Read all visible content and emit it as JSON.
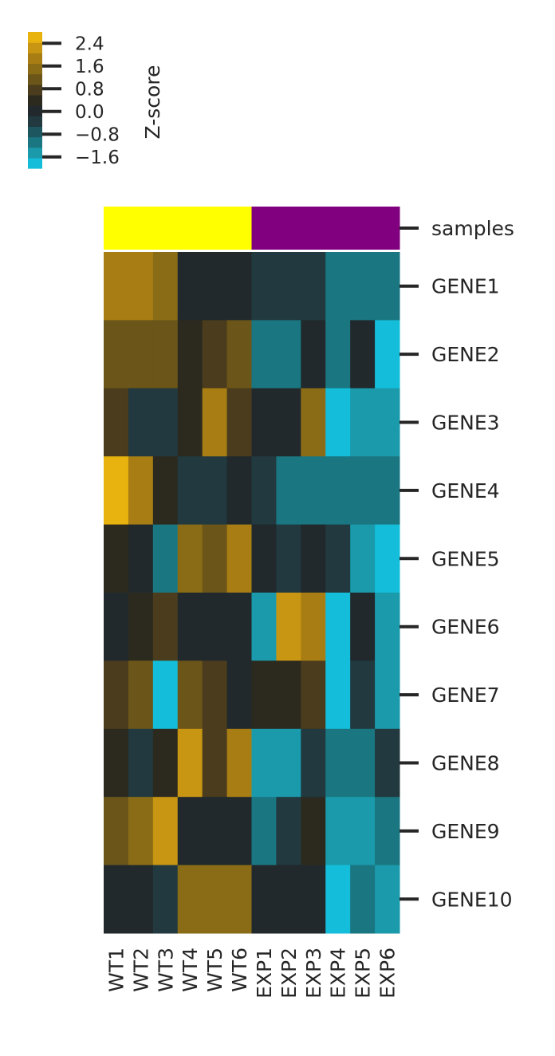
{
  "chart_data": {
    "type": "heatmap",
    "title": "",
    "samples": [
      "WT1",
      "WT2",
      "WT3",
      "WT4",
      "WT5",
      "WT6",
      "EXP1",
      "EXP2",
      "EXP3",
      "EXP4",
      "EXP5",
      "EXP6"
    ],
    "genes": [
      "GENE1",
      "GENE2",
      "GENE3",
      "GENE4",
      "GENE5",
      "GENE6",
      "GENE7",
      "GENE8",
      "GENE9",
      "GENE10"
    ],
    "annotation": {
      "label": "samples",
      "groups": [
        {
          "name": "WT",
          "color": "#ffff00",
          "members": [
            "WT1",
            "WT2",
            "WT3",
            "WT4",
            "WT5",
            "WT6"
          ]
        },
        {
          "name": "EXP",
          "color": "#800080",
          "members": [
            "EXP1",
            "EXP2",
            "EXP3",
            "EXP4",
            "EXP5",
            "EXP6"
          ]
        }
      ]
    },
    "values": [
      [
        1.9,
        1.9,
        1.6,
        -0.1,
        0.1,
        -0.1,
        -0.5,
        -0.5,
        -0.5,
        -1.2,
        -1.2,
        -1.2
      ],
      [
        1.2,
        1.2,
        1.2,
        0.4,
        0.9,
        1.2,
        -0.9,
        -0.9,
        -0.1,
        -1.1,
        -0.1,
        -2.3
      ],
      [
        0.9,
        -0.4,
        -0.4,
        0.4,
        2.0,
        0.7,
        -0.1,
        -0.1,
        1.5,
        -2.3,
        -1.3,
        -1.3
      ],
      [
        2.6,
        2.0,
        0.4,
        -0.5,
        -0.5,
        -0.1,
        -0.5,
        -0.9,
        -0.9,
        -0.9,
        -0.9,
        -0.9
      ],
      [
        0.4,
        0.1,
        -0.9,
        1.5,
        1.2,
        2.0,
        -0.1,
        -0.5,
        -0.1,
        -0.4,
        -1.6,
        -2.1
      ],
      [
        0.1,
        0.4,
        0.8,
        -0.1,
        0.1,
        0.1,
        -1.3,
        2.1,
        1.8,
        -2.4,
        -0.1,
        -1.6
      ],
      [
        0.9,
        1.2,
        -1.7,
        1.2,
        0.9,
        0.1,
        0.4,
        0.4,
        0.8,
        -2.4,
        -0.4,
        -1.6
      ],
      [
        0.4,
        -0.4,
        0.4,
        2.4,
        0.8,
        2.0,
        -1.3,
        -1.3,
        -0.4,
        -1.2,
        -1.2,
        -0.4
      ],
      [
        1.2,
        1.6,
        2.4,
        0.1,
        0.1,
        0.1,
        -0.9,
        -0.4,
        0.4,
        -1.6,
        -1.6,
        -1.1
      ],
      [
        -0.1,
        0.1,
        -0.4,
        1.6,
        1.6,
        1.6,
        0.1,
        0.1,
        0.1,
        -2.0,
        -1.2,
        -1.6
      ]
    ],
    "colorbar": {
      "label": "Z-score",
      "vmin": -2.0,
      "vmax": 2.8,
      "ticks": [
        2.4,
        1.6,
        0.8,
        0.0,
        -0.8,
        -1.6
      ],
      "tick_labels": [
        "2.4",
        "1.6",
        "0.8",
        "0.0",
        "−0.8",
        "−1.6"
      ],
      "colors": [
        "#14bdd9",
        "#1a9aab",
        "#1a7680",
        "#1e5660",
        "#21393f",
        "#21292c",
        "#2c2a1f",
        "#4a3c1c",
        "#6b5519",
        "#8a6c17",
        "#a87e14",
        "#c89612",
        "#e8b30e"
      ]
    }
  }
}
